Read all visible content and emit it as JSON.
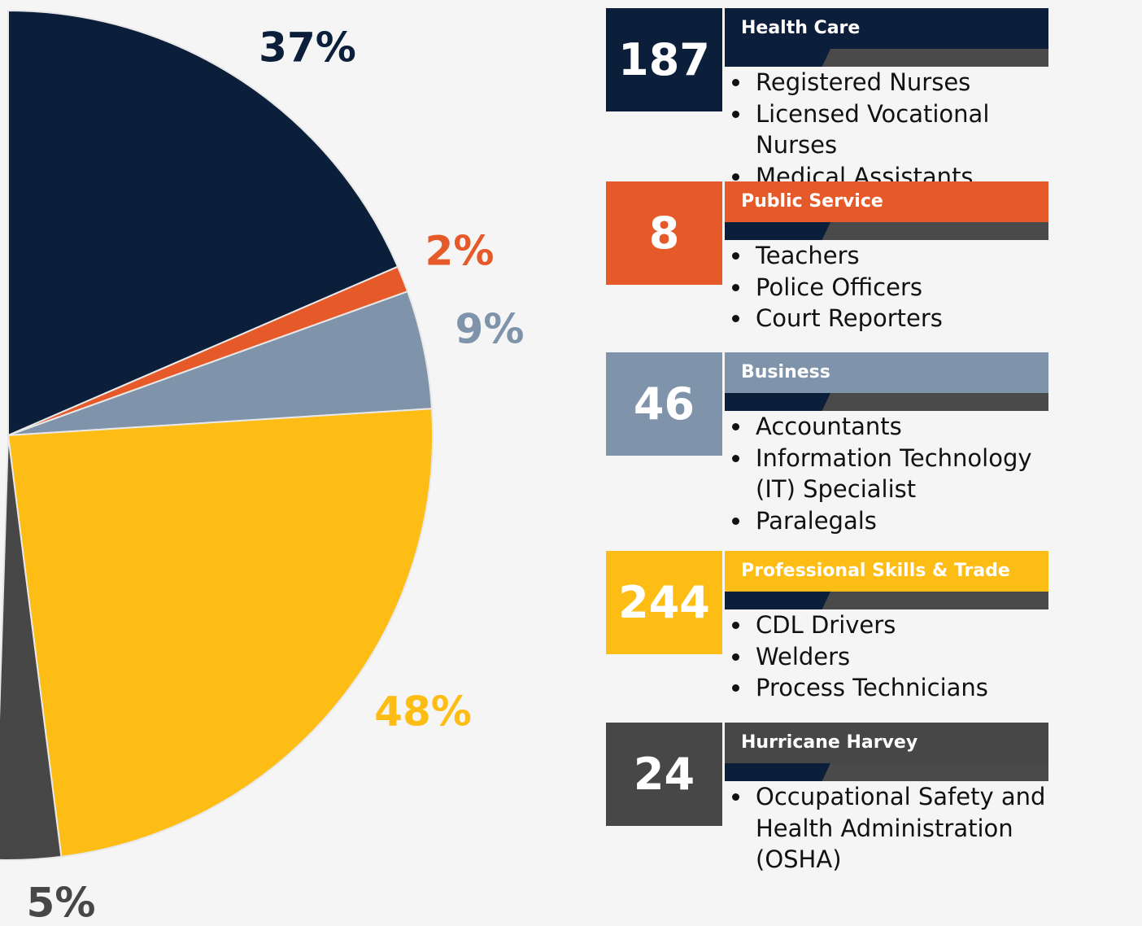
{
  "chart_data": {
    "type": "pie",
    "values": [
      37,
      2,
      9,
      48,
      5
    ],
    "value_labels": [
      "37%",
      "2%",
      "9%",
      "48%",
      "5%"
    ],
    "colors": [
      "#0b1f3a",
      "#e55a28",
      "#7f93aa",
      "#fdbd14",
      "#474747"
    ]
  },
  "cards": [
    {
      "count": 187,
      "title": "Health Care",
      "items": [
        "Registered Nurses",
        "Licensed Vocational Nurses",
        "Medical Assistants"
      ]
    },
    {
      "count": 8,
      "title": "Public Service",
      "items": [
        "Teachers",
        "Police Officers",
        "Court Reporters"
      ]
    },
    {
      "count": 46,
      "title": "Business",
      "items": [
        "Accountants",
        "Information Technology (IT) Specialist",
        "Paralegals"
      ]
    },
    {
      "count": 244,
      "title": "Professional Skills & Trade",
      "items": [
        "CDL Drivers",
        "Welders",
        "Process Technicians"
      ]
    },
    {
      "count": 24,
      "title": "Hurricane Harvey",
      "items": [
        "Occupational Safety and Health Administration (OSHA)"
      ]
    }
  ]
}
